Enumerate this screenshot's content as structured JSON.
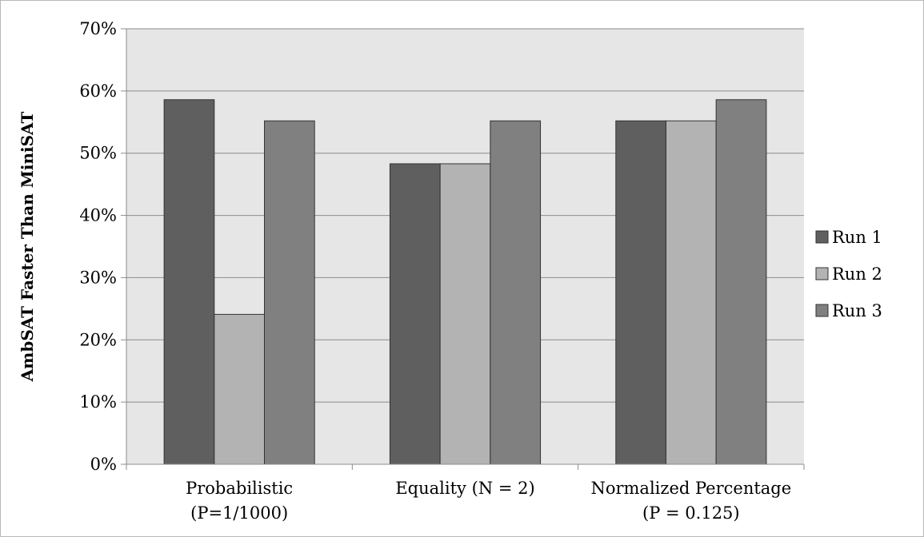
{
  "chart_data": {
    "type": "bar",
    "categories": [
      [
        "Probabilistic",
        "(P=1/1000)"
      ],
      [
        "Equality (N = 2)"
      ],
      [
        "Normalized Percentage",
        "(P = 0.125)"
      ]
    ],
    "series": [
      {
        "name": "Run 1",
        "values": [
          0.586,
          0.483,
          0.552
        ],
        "color": "#5f5f5f"
      },
      {
        "name": "Run 2",
        "values": [
          0.241,
          0.483,
          0.552
        ],
        "color": "#b3b3b3"
      },
      {
        "name": "Run 3",
        "values": [
          0.552,
          0.552,
          0.586
        ],
        "color": "#808080"
      }
    ],
    "title": "",
    "xlabel": "",
    "ylabel": "AmbSAT Faster Than MiniSAT",
    "ylim": [
      0,
      0.7
    ],
    "yticks": [
      "0%",
      "10%",
      "20%",
      "30%",
      "40%",
      "50%",
      "60%",
      "70%"
    ],
    "grid": true,
    "plot_background": "#e6e6e6",
    "legend": "right"
  }
}
